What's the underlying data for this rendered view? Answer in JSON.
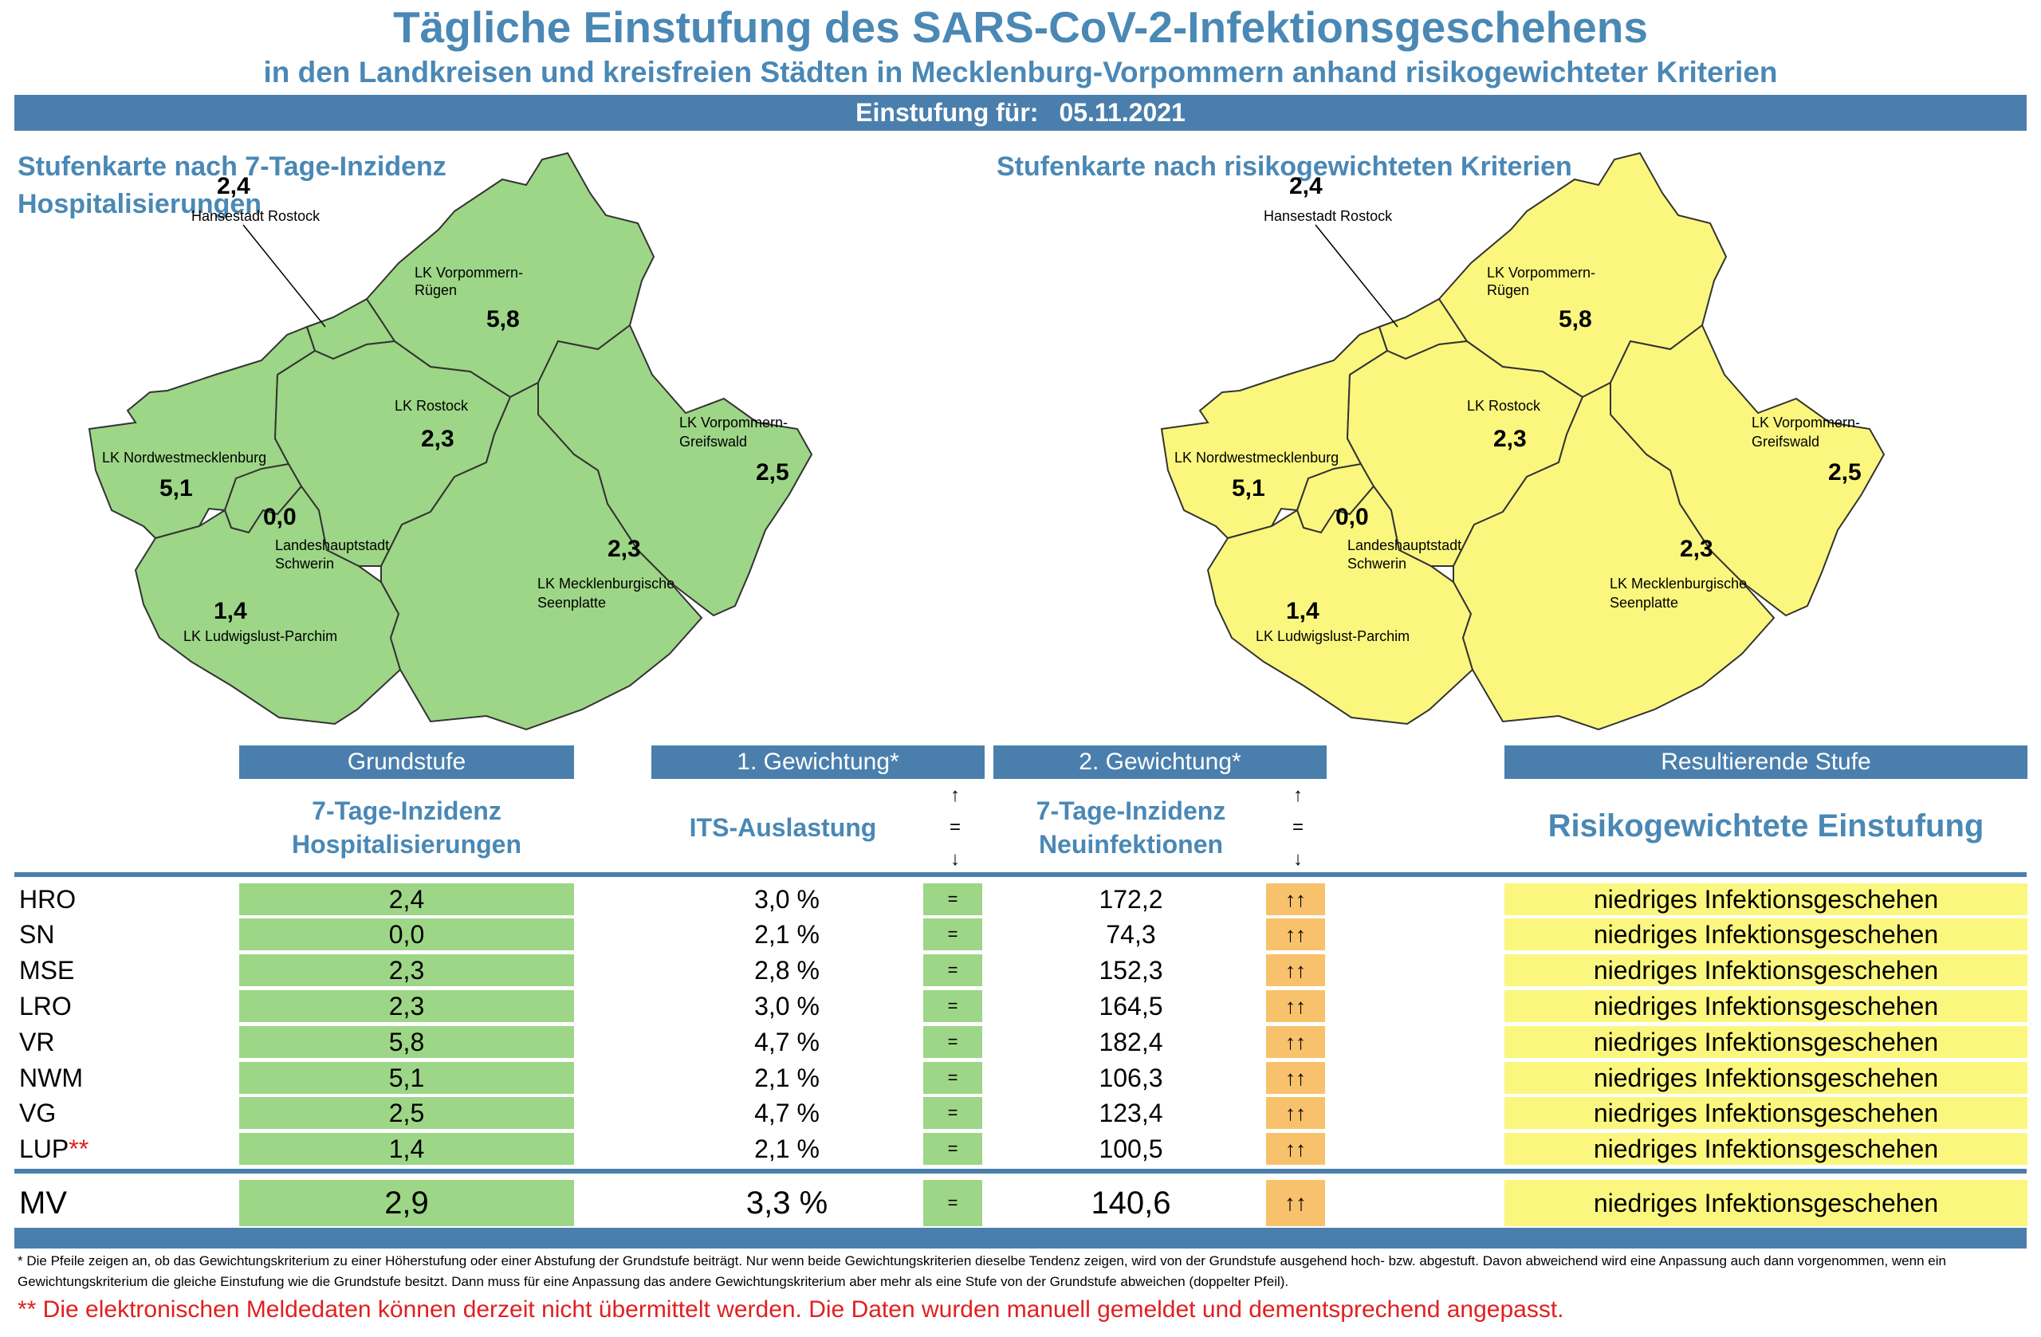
{
  "title": "Tägliche Einstufung des SARS-CoV-2-Infektionsgeschehens",
  "subtitle": "in den Landkreisen und kreisfreien Städten in Mecklenburg-Vorpommern anhand risikogewichteter Kriterien",
  "date_label": "Einstufung für:",
  "date_value": "05.11.2021",
  "map_left": {
    "title_line1": "Stufenkarte nach 7-Tage-Inzidenz",
    "title_line2": "Hospitalisierungen",
    "fill_color": "#9dd687"
  },
  "map_right": {
    "title_line1": "Stufenkarte nach risikogewichteten Kriterien",
    "fill_color": "#fbf77e"
  },
  "districts": {
    "hro": {
      "label": "Hansestadt Rostock",
      "value": "2,4"
    },
    "vr": {
      "label_line1": "LK Vorpommern-",
      "label_line2": "Rügen",
      "value": "5,8"
    },
    "lro": {
      "label": "LK Rostock",
      "value": "2,3"
    },
    "vg": {
      "label_line1": "LK Vorpommern-",
      "label_line2": "Greifswald",
      "value": "2,5"
    },
    "nwm": {
      "label": "LK Nordwestmecklenburg",
      "value": "5,1"
    },
    "sn": {
      "label_line1": "Landeshauptstadt",
      "label_line2": "Schwerin",
      "value": "0,0"
    },
    "mse": {
      "label_line1": "LK Mecklenburgische",
      "label_line2": "Seenplatte",
      "value": "2,3"
    },
    "lup": {
      "label": "LK Ludwigslust-Parchim",
      "value": "1,4"
    }
  },
  "headers": {
    "grundstufe": "Grundstufe",
    "gewichtung1": "1. Gewichtung*",
    "gewichtung2": "2. Gewichtung*",
    "resultierend": "Resultierende Stufe",
    "col1_line1": "7-Tage-Inzidenz",
    "col1_line2": "Hospitalisierungen",
    "col2": "ITS-Auslastung",
    "col3_line1": "7-Tage-Inzidenz",
    "col3_line2": "Neuinfektionen",
    "col4": "Risikogewichtete Einstufung",
    "arrow_up": "↑",
    "arrow_eq": "=",
    "arrow_down": "↓"
  },
  "rows": [
    {
      "name": "HRO",
      "mark": "",
      "hosp": "2,4",
      "its": "3,0 %",
      "its_trend": "=",
      "inz": "172,2",
      "inz_trend": "↑↑",
      "result": "niedriges Infektionsgeschehen"
    },
    {
      "name": "SN",
      "mark": "",
      "hosp": "0,0",
      "its": "2,1 %",
      "its_trend": "=",
      "inz": "74,3",
      "inz_trend": "↑↑",
      "result": "niedriges Infektionsgeschehen"
    },
    {
      "name": "MSE",
      "mark": "",
      "hosp": "2,3",
      "its": "2,8 %",
      "its_trend": "=",
      "inz": "152,3",
      "inz_trend": "↑↑",
      "result": "niedriges Infektionsgeschehen"
    },
    {
      "name": "LRO",
      "mark": "",
      "hosp": "2,3",
      "its": "3,0 %",
      "its_trend": "=",
      "inz": "164,5",
      "inz_trend": "↑↑",
      "result": "niedriges Infektionsgeschehen"
    },
    {
      "name": "VR",
      "mark": "",
      "hosp": "5,8",
      "its": "4,7 %",
      "its_trend": "=",
      "inz": "182,4",
      "inz_trend": "↑↑",
      "result": "niedriges Infektionsgeschehen"
    },
    {
      "name": "NWM",
      "mark": "",
      "hosp": "5,1",
      "its": "2,1 %",
      "its_trend": "=",
      "inz": "106,3",
      "inz_trend": "↑↑",
      "result": "niedriges Infektionsgeschehen"
    },
    {
      "name": "VG",
      "mark": "",
      "hosp": "2,5",
      "its": "4,7 %",
      "its_trend": "=",
      "inz": "123,4",
      "inz_trend": "↑↑",
      "result": "niedriges Infektionsgeschehen"
    },
    {
      "name": "LUP",
      "mark": "**",
      "hosp": "1,4",
      "its": "2,1 %",
      "its_trend": "=",
      "inz": "100,5",
      "inz_trend": "↑↑",
      "result": "niedriges Infektionsgeschehen"
    }
  ],
  "total": {
    "name": "MV",
    "hosp": "2,9",
    "its": "3,3 %",
    "its_trend": "=",
    "inz": "140,6",
    "inz_trend": "↑↑",
    "result": "niedriges Infektionsgeschehen"
  },
  "footnote": "* Die Pfeile zeigen an, ob das Gewichtungskriterium zu einer Höherstufung oder einer Abstufung der Grundstufe beiträgt. Nur wenn beide Gewichtungskriterien dieselbe Tendenz zeigen, wird von der Grundstufe ausgehend hoch- bzw. abgestuft.  Davon abweichend wird eine Anpassung auch dann vorgenommen, wenn ein Gewichtungskriterium die gleiche Einstufung wie die Grundstufe besitzt. Dann muss für eine Anpassung das andere Gewichtungskriterium aber mehr als eine Stufe von der Grundstufe abweichen (doppelter Pfeil).",
  "footnote2": "** Die elektronischen Meldedaten können derzeit nicht übermittelt werden. Die Daten wurden manuell gemeldet und dementsprechend angepasst.",
  "colors": {
    "accent_blue": "#4a7fad",
    "title_blue": "#4a88b5",
    "green": "#9dd687",
    "yellow": "#fbf77e",
    "orange": "#f7c26b",
    "red": "#e02020"
  }
}
